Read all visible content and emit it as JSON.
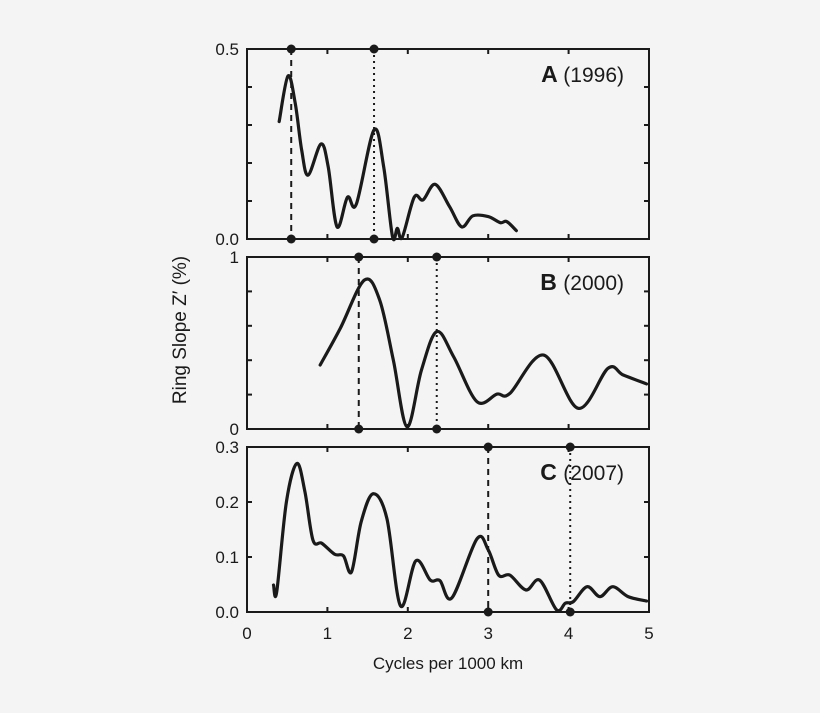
{
  "chart_data": [
    {
      "type": "line",
      "panel_label": "A",
      "panel_year": "(1996)",
      "xlim": [
        0,
        5
      ],
      "ylim": [
        0,
        0.5
      ],
      "y_tick_labels": [
        "0.0",
        "0.5"
      ],
      "y_tick_labels_values": [
        0,
        0.5
      ],
      "y_minor_ticks": [
        0.1,
        0.2,
        0.3,
        0.4
      ],
      "x": [
        0.4,
        0.51,
        0.6,
        0.68,
        0.76,
        0.92,
        1.01,
        1.12,
        1.25,
        1.36,
        1.58,
        1.7,
        1.81,
        1.87,
        1.93,
        2.08,
        2.19,
        2.34,
        2.52,
        2.67,
        2.81,
        3.0,
        3.15,
        3.23,
        3.35
      ],
      "y": [
        0.309,
        0.429,
        0.357,
        0.234,
        0.168,
        0.25,
        0.19,
        0.032,
        0.11,
        0.092,
        0.287,
        0.19,
        0.006,
        0.028,
        0.004,
        0.11,
        0.103,
        0.144,
        0.085,
        0.032,
        0.061,
        0.059,
        0.043,
        0.046,
        0.022
      ],
      "dashed_line_x": 0.55,
      "dotted_line_x": 1.58
    },
    {
      "type": "line",
      "panel_label": "B",
      "panel_year": "(2000)",
      "xlim": [
        0,
        5
      ],
      "ylim": [
        0,
        1
      ],
      "y_tick_labels": [
        "0",
        "1"
      ],
      "y_tick_labels_values": [
        0,
        1
      ],
      "y_minor_ticks": [
        0.2,
        0.4,
        0.6,
        0.8
      ],
      "x": [
        0.91,
        1.16,
        1.46,
        1.65,
        1.82,
        1.99,
        2.17,
        2.36,
        2.57,
        2.86,
        3.11,
        3.27,
        3.69,
        4.12,
        4.49,
        4.68,
        4.97
      ],
      "y": [
        0.372,
        0.585,
        0.866,
        0.75,
        0.401,
        0.013,
        0.343,
        0.566,
        0.42,
        0.159,
        0.203,
        0.207,
        0.43,
        0.12,
        0.353,
        0.314,
        0.262
      ],
      "dashed_line_x": 1.39,
      "dotted_line_x": 2.36
    },
    {
      "type": "line",
      "panel_label": "C",
      "panel_year": "(2007)",
      "xlim": [
        0,
        5
      ],
      "ylim": [
        0,
        0.3
      ],
      "y_tick_labels": [
        "0.0",
        "0.1",
        "0.2",
        "0.3"
      ],
      "y_tick_labels_values": [
        0,
        0.1,
        0.2,
        0.3
      ],
      "y_minor_ticks": [],
      "x": [
        0.33,
        0.37,
        0.49,
        0.62,
        0.72,
        0.82,
        0.93,
        1.09,
        1.2,
        1.3,
        1.42,
        1.57,
        1.74,
        1.91,
        2.1,
        2.28,
        2.4,
        2.55,
        2.86,
        3.0,
        3.13,
        3.27,
        3.47,
        3.64,
        3.85,
        3.96,
        4.06,
        4.23,
        4.39,
        4.55,
        4.74,
        4.97
      ],
      "y": [
        0.049,
        0.037,
        0.2,
        0.27,
        0.219,
        0.131,
        0.125,
        0.105,
        0.102,
        0.073,
        0.164,
        0.215,
        0.17,
        0.011,
        0.093,
        0.058,
        0.057,
        0.026,
        0.133,
        0.113,
        0.067,
        0.067,
        0.04,
        0.058,
        0.004,
        0.016,
        0.019,
        0.046,
        0.028,
        0.046,
        0.028,
        0.02
      ],
      "dashed_line_x": 3.0,
      "dotted_line_x": 4.02
    }
  ],
  "x_tick_labels": [
    "0",
    "1",
    "2",
    "3",
    "4",
    "5"
  ],
  "xlabel": "Cycles per 1000 km",
  "ylabel": "Ring Slope Z′ (%)",
  "line_color": "#1a1a1a",
  "background_color": "#f4f4f4"
}
